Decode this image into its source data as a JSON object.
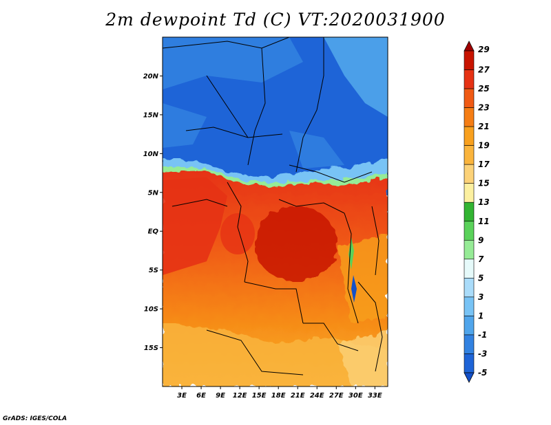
{
  "title": "2m dewpoint Td (C) VT:2020031900",
  "credit": "GrADS: IGES/COLA",
  "map": {
    "lat_range": [
      -20,
      25
    ],
    "lon_range": [
      0,
      35
    ],
    "lat_ticks": [
      {
        "value": 20,
        "label": "20N"
      },
      {
        "value": 15,
        "label": "15N"
      },
      {
        "value": 10,
        "label": "10N"
      },
      {
        "value": 5,
        "label": "5N"
      },
      {
        "value": 0,
        "label": "EQ"
      },
      {
        "value": -5,
        "label": "5S"
      },
      {
        "value": -10,
        "label": "10S"
      },
      {
        "value": -15,
        "label": "15S"
      }
    ],
    "lon_ticks": [
      {
        "value": 3,
        "label": "3E"
      },
      {
        "value": 6,
        "label": "6E"
      },
      {
        "value": 9,
        "label": "9E"
      },
      {
        "value": 12,
        "label": "12E"
      },
      {
        "value": 15,
        "label": "15E"
      },
      {
        "value": 18,
        "label": "18E"
      },
      {
        "value": 21,
        "label": "21E"
      },
      {
        "value": 24,
        "label": "24E"
      },
      {
        "value": 27,
        "label": "27E"
      },
      {
        "value": 30,
        "label": "30E"
      },
      {
        "value": 33,
        "label": "33E"
      }
    ]
  },
  "colorbar": {
    "levels": [
      "29",
      "27",
      "25",
      "23",
      "21",
      "19",
      "17",
      "15",
      "13",
      "11",
      "9",
      "7",
      "5",
      "3",
      "1",
      "-1",
      "-3",
      "-5"
    ],
    "colors": [
      "#a00000",
      "#c81400",
      "#e63214",
      "#f05a14",
      "#f57d14",
      "#f8a01e",
      "#fab43c",
      "#fcd278",
      "#fcf0a0",
      "#32b432",
      "#5ad25a",
      "#96eb96",
      "#e6fafa",
      "#aadcfa",
      "#78c3f5",
      "#50a5eb",
      "#3282e1",
      "#1e64d7",
      "#1450c8"
    ],
    "over_color": "#a00000",
    "under_color": "#1450c8"
  }
}
